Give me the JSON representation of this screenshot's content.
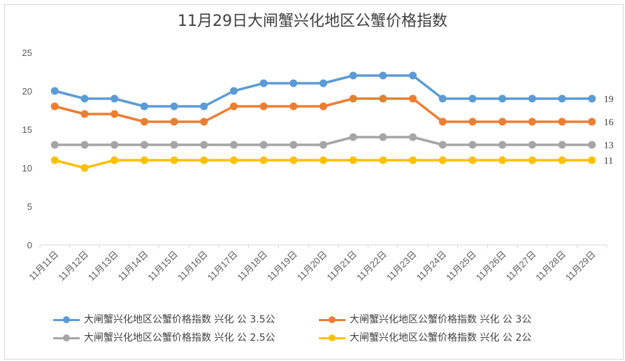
{
  "chart_data": {
    "type": "line",
    "title": "11月29日大闸蟹兴化地区公蟹价格指数",
    "categories": [
      "11月11日",
      "11月12日",
      "11月13日",
      "11月14日",
      "11月15日",
      "11月16日",
      "11月17日",
      "11月18日",
      "11月19日",
      "11月20日",
      "11月21日",
      "11月22日",
      "11月23日",
      "11月24日",
      "11月25日",
      "11月26日",
      "11月27日",
      "11月28日",
      "11月29日"
    ],
    "ylim": [
      0,
      25
    ],
    "yticks": [
      0,
      5,
      10,
      15,
      20,
      25
    ],
    "grid": false,
    "legend_position": "bottom",
    "series": [
      {
        "name": "大闸蟹兴化地区公蟹价格指数 兴化 公 3.5公",
        "color": "#5b9bd5",
        "values": [
          20,
          19,
          19,
          18,
          18,
          18,
          20,
          21,
          21,
          21,
          22,
          22,
          22,
          19,
          19,
          19,
          19,
          19,
          19
        ],
        "end_label": "19"
      },
      {
        "name": "大闸蟹兴化地区公蟹价格指数 兴化 公 3公",
        "color": "#ed7d31",
        "values": [
          18,
          17,
          17,
          16,
          16,
          16,
          18,
          18,
          18,
          18,
          19,
          19,
          19,
          16,
          16,
          16,
          16,
          16,
          16
        ],
        "end_label": "16"
      },
      {
        "name": "大闸蟹兴化地区公蟹价格指数 兴化 公 2.5公",
        "color": "#a5a5a5",
        "values": [
          13,
          13,
          13,
          13,
          13,
          13,
          13,
          13,
          13,
          13,
          14,
          14,
          14,
          13,
          13,
          13,
          13,
          13,
          13
        ],
        "end_label": "13"
      },
      {
        "name": "大闸蟹兴化地区公蟹价格指数 兴化 公 2公",
        "color": "#ffc000",
        "values": [
          11,
          10,
          11,
          11,
          11,
          11,
          11,
          11,
          11,
          11,
          11,
          11,
          11,
          11,
          11,
          11,
          11,
          11,
          11
        ],
        "end_label": "11"
      }
    ]
  }
}
